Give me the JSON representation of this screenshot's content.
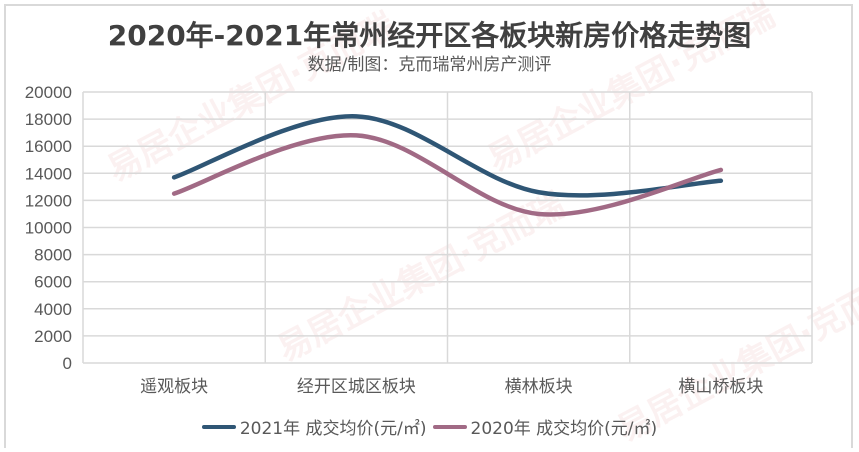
{
  "title": "2020年-2021年常州经开区各板块新房价格走势图",
  "subtitle": "数据/制图：克而瑞常州房产测评",
  "watermark": "易居企业集团·克而瑞",
  "colors": {
    "series_2021": "#2f5675",
    "series_2020": "#a16a85",
    "grid": "#d9d9d9",
    "text": "#595959",
    "title": "#404040"
  },
  "legend": [
    {
      "label": "2021年 成交均价(元/㎡)",
      "color": "#2f5675"
    },
    {
      "label": "2020年 成交均价(元/㎡)",
      "color": "#a16a85"
    }
  ],
  "chart_data": {
    "type": "line",
    "title": "2020年-2021年常州经开区各板块新房价格走势图",
    "subtitle": "数据/制图：克而瑞常州房产测评",
    "xlabel": "",
    "ylabel": "",
    "categories": [
      "遥观板块",
      "经开区城区板块",
      "横林板块",
      "横山桥板块"
    ],
    "series": [
      {
        "name": "2021年 成交均价(元/㎡)",
        "values": [
          13700,
          18200,
          12600,
          13450
        ]
      },
      {
        "name": "2020年 成交均价(元/㎡)",
        "values": [
          12500,
          16800,
          11000,
          14250
        ]
      }
    ],
    "ylim": [
      0,
      20000
    ],
    "yticks": [
      0,
      2000,
      4000,
      6000,
      8000,
      10000,
      12000,
      14000,
      16000,
      18000,
      20000
    ],
    "grid": true,
    "smooth": true,
    "legend_position": "bottom"
  }
}
